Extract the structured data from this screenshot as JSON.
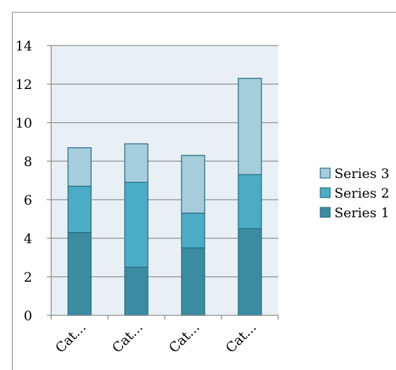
{
  "chart_data": {
    "type": "bar",
    "stacked": true,
    "categories": [
      "Cat...",
      "Cat...",
      "Cat...",
      "Cat..."
    ],
    "series": [
      {
        "name": "Series 1",
        "values": [
          4.3,
          2.5,
          3.5,
          4.5
        ],
        "color": "#3b8ba3",
        "stroke": "#2a6f86"
      },
      {
        "name": "Series 2",
        "values": [
          2.4,
          4.4,
          1.8,
          2.8
        ],
        "color": "#4bacc6",
        "stroke": "#2a6f86"
      },
      {
        "name": "Series 3",
        "values": [
          2.0,
          2.0,
          3.0,
          5.0
        ],
        "color": "#a5cddb",
        "stroke": "#2a6f86"
      }
    ],
    "yticks": [
      0,
      2,
      4,
      6,
      8,
      10,
      12,
      14
    ],
    "ylim": [
      0,
      14
    ],
    "grid": true,
    "legend": "right",
    "plot_background": "#e9f0f5",
    "title": "",
    "xlabel": "",
    "ylabel": ""
  }
}
